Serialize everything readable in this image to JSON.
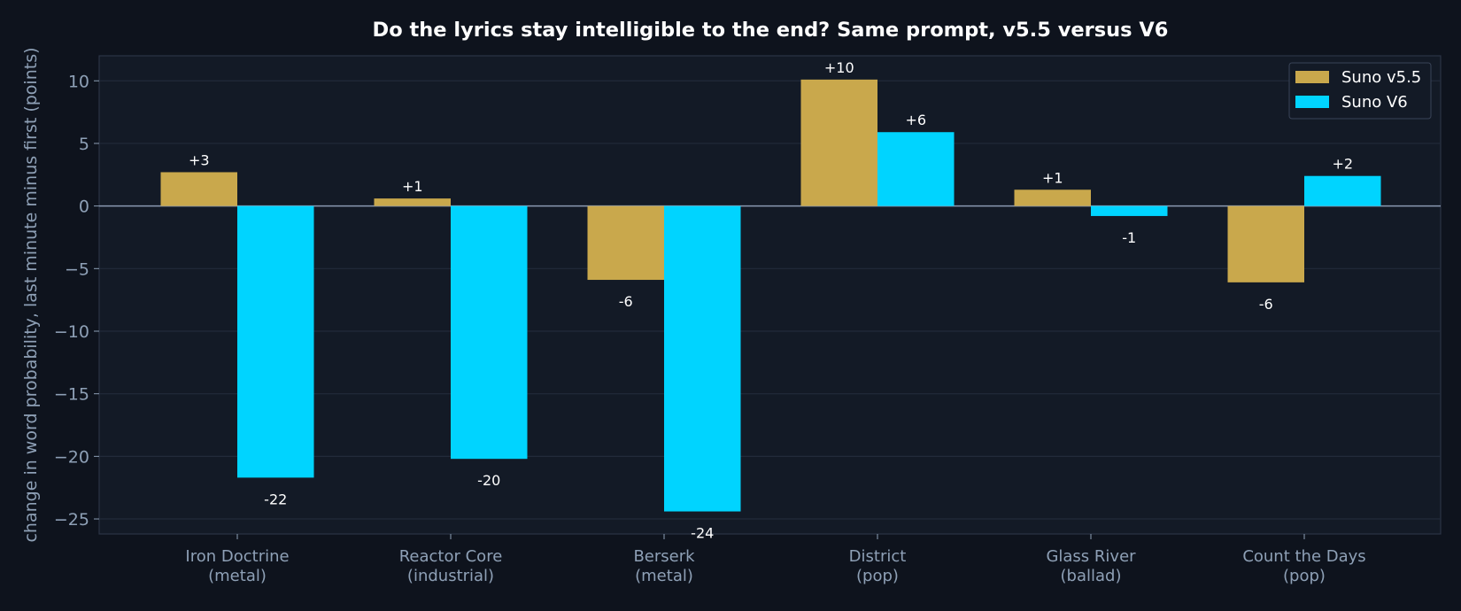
{
  "chart_data": {
    "type": "bar",
    "title": "Do the lyrics stay intelligible to the end? Same prompt, v5.5 versus V6",
    "ylabel": "change in word probability, last minute minus first (points)",
    "xlabel": "",
    "categories": [
      [
        "Iron Doctrine",
        "(metal)"
      ],
      [
        "Reactor Core",
        "(industrial)"
      ],
      [
        "Berserk",
        "(metal)"
      ],
      [
        "District",
        "(pop)"
      ],
      [
        "Glass River",
        "(ballad)"
      ],
      [
        "Count the Days",
        "(pop)"
      ]
    ],
    "series": [
      {
        "name": "Suno v5.5",
        "color": "#c9a84c",
        "values": [
          2.7,
          0.6,
          -5.9,
          10.1,
          1.3,
          -6.1
        ],
        "labels": [
          "+3",
          "+1",
          "-6",
          "+10",
          "+1",
          "-6"
        ]
      },
      {
        "name": "Suno V6",
        "color": "#00d4ff",
        "values": [
          -21.7,
          -20.2,
          -24.4,
          5.9,
          -0.8,
          2.4
        ],
        "labels": [
          "-22",
          "-20",
          "-24",
          "+6",
          "-1",
          "+2"
        ]
      }
    ],
    "ylim": [
      -26.2,
      12
    ],
    "yticks": [
      10,
      5,
      0,
      -5,
      -10,
      -15,
      -20,
      -25
    ],
    "ytick_labels": [
      "10",
      "5",
      "0",
      "−5",
      "−10",
      "−15",
      "−20",
      "−25"
    ],
    "grid": true,
    "legend_position": "top-right"
  }
}
